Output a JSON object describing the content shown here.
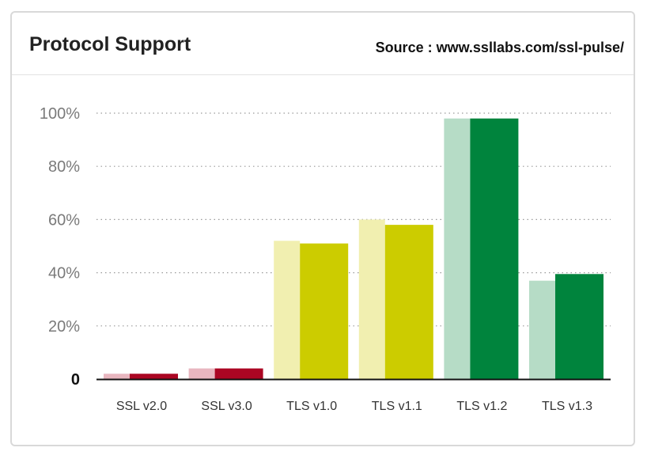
{
  "header": {
    "title": "Protocol Support",
    "source": "Source : www.ssllabs.com/ssl-pulse/"
  },
  "chart_data": {
    "type": "bar",
    "title": "Protocol Support",
    "xlabel": "",
    "ylabel": "",
    "ylim": [
      0,
      100
    ],
    "y_ticks": [
      "0",
      "20%",
      "40%",
      "60%",
      "80%",
      "100%"
    ],
    "y_tick_values": [
      0,
      20,
      40,
      60,
      80,
      100
    ],
    "grid": "dotted-horizontal",
    "legend": "none",
    "categories": [
      "SSL v2.0",
      "SSL v3.0",
      "TLS v1.0",
      "TLS v1.1",
      "TLS v1.2",
      "TLS v1.3"
    ],
    "series": [
      {
        "values": [
          2,
          4,
          52,
          60,
          98,
          37
        ],
        "colors": [
          "#e8b6bf",
          "#e8b6bf",
          "#f1efb0",
          "#f1efb0",
          "#b6dcc6",
          "#b6dcc6"
        ]
      },
      {
        "values": [
          2,
          4,
          51,
          58,
          98,
          39.5
        ],
        "colors": [
          "#ab0623",
          "#ab0623",
          "#cccc00",
          "#cccc00",
          "#00843d",
          "#00843d"
        ]
      }
    ]
  }
}
